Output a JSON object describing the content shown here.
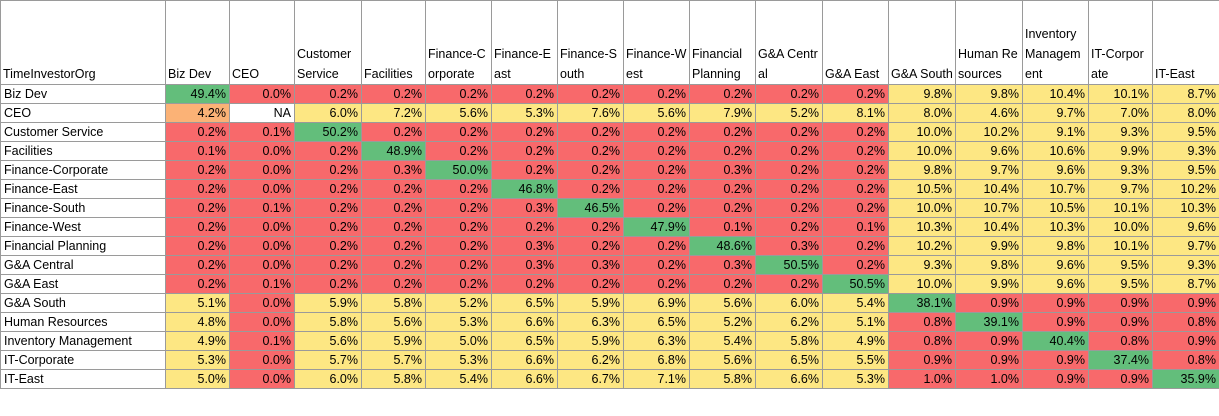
{
  "corner_label": "TimeInvestorOrg",
  "columns": [
    "Biz Dev",
    "CEO",
    "Customer Service",
    "Facilities",
    "Finance-Corporate",
    "Finance-East",
    "Finance-South",
    "Finance-West",
    "Financial Planning",
    "G&A Central",
    "G&A East",
    "G&A South",
    "Human Resources",
    "Inventory Management",
    "IT-Corporate",
    "IT-East"
  ],
  "rows": [
    {
      "label": "Biz Dev",
      "values": [
        "49.4%",
        "0.0%",
        "0.2%",
        "0.2%",
        "0.2%",
        "0.2%",
        "0.2%",
        "0.2%",
        "0.2%",
        "0.2%",
        "0.2%",
        "9.8%",
        "9.8%",
        "10.4%",
        "10.1%",
        "8.7%"
      ]
    },
    {
      "label": "CEO",
      "values": [
        "4.2%",
        "NA",
        "6.0%",
        "7.2%",
        "5.6%",
        "5.3%",
        "7.6%",
        "5.6%",
        "7.9%",
        "5.2%",
        "8.1%",
        "8.0%",
        "4.6%",
        "9.7%",
        "7.0%",
        "8.0%"
      ]
    },
    {
      "label": "Customer Service",
      "values": [
        "0.2%",
        "0.1%",
        "50.2%",
        "0.2%",
        "0.2%",
        "0.2%",
        "0.2%",
        "0.2%",
        "0.2%",
        "0.2%",
        "0.2%",
        "10.0%",
        "10.2%",
        "9.1%",
        "9.3%",
        "9.5%"
      ]
    },
    {
      "label": "Facilities",
      "values": [
        "0.1%",
        "0.0%",
        "0.2%",
        "48.9%",
        "0.2%",
        "0.2%",
        "0.2%",
        "0.2%",
        "0.2%",
        "0.2%",
        "0.2%",
        "10.0%",
        "9.6%",
        "10.6%",
        "9.9%",
        "9.3%"
      ]
    },
    {
      "label": "Finance-Corporate",
      "values": [
        "0.2%",
        "0.0%",
        "0.2%",
        "0.3%",
        "50.0%",
        "0.2%",
        "0.2%",
        "0.2%",
        "0.3%",
        "0.2%",
        "0.2%",
        "9.8%",
        "9.7%",
        "9.6%",
        "9.3%",
        "9.5%"
      ]
    },
    {
      "label": "Finance-East",
      "values": [
        "0.2%",
        "0.0%",
        "0.2%",
        "0.2%",
        "0.2%",
        "46.8%",
        "0.2%",
        "0.2%",
        "0.2%",
        "0.2%",
        "0.2%",
        "10.5%",
        "10.4%",
        "10.7%",
        "9.7%",
        "10.2%"
      ]
    },
    {
      "label": "Finance-South",
      "values": [
        "0.2%",
        "0.1%",
        "0.2%",
        "0.2%",
        "0.2%",
        "0.3%",
        "46.5%",
        "0.2%",
        "0.2%",
        "0.2%",
        "0.2%",
        "10.0%",
        "10.7%",
        "10.5%",
        "10.1%",
        "10.3%"
      ]
    },
    {
      "label": "Finance-West",
      "values": [
        "0.2%",
        "0.0%",
        "0.2%",
        "0.2%",
        "0.2%",
        "0.2%",
        "0.2%",
        "47.9%",
        "0.1%",
        "0.2%",
        "0.1%",
        "10.3%",
        "10.4%",
        "10.3%",
        "10.0%",
        "9.6%"
      ]
    },
    {
      "label": "Financial Planning",
      "values": [
        "0.2%",
        "0.0%",
        "0.2%",
        "0.2%",
        "0.2%",
        "0.3%",
        "0.2%",
        "0.2%",
        "48.6%",
        "0.3%",
        "0.2%",
        "10.2%",
        "9.9%",
        "9.8%",
        "10.1%",
        "9.7%"
      ]
    },
    {
      "label": "G&A Central",
      "values": [
        "0.2%",
        "0.0%",
        "0.2%",
        "0.2%",
        "0.2%",
        "0.3%",
        "0.3%",
        "0.2%",
        "0.3%",
        "50.5%",
        "0.2%",
        "9.3%",
        "9.8%",
        "9.6%",
        "9.5%",
        "9.3%"
      ]
    },
    {
      "label": "G&A East",
      "values": [
        "0.2%",
        "0.1%",
        "0.2%",
        "0.2%",
        "0.2%",
        "0.2%",
        "0.2%",
        "0.2%",
        "0.2%",
        "0.2%",
        "50.5%",
        "10.0%",
        "9.9%",
        "9.6%",
        "9.5%",
        "8.7%"
      ]
    },
    {
      "label": "G&A South",
      "values": [
        "5.1%",
        "0.0%",
        "5.9%",
        "5.8%",
        "5.2%",
        "6.5%",
        "5.9%",
        "6.9%",
        "5.6%",
        "6.0%",
        "5.4%",
        "38.1%",
        "0.9%",
        "0.9%",
        "0.9%",
        "0.9%"
      ]
    },
    {
      "label": "Human Resources",
      "values": [
        "4.8%",
        "0.0%",
        "5.8%",
        "5.6%",
        "5.3%",
        "6.6%",
        "6.3%",
        "6.5%",
        "5.2%",
        "6.2%",
        "5.1%",
        "0.8%",
        "39.1%",
        "0.9%",
        "0.9%",
        "0.8%"
      ]
    },
    {
      "label": "Inventory Management",
      "values": [
        "4.9%",
        "0.1%",
        "5.6%",
        "5.9%",
        "5.0%",
        "6.5%",
        "5.9%",
        "6.3%",
        "5.4%",
        "5.8%",
        "4.9%",
        "0.8%",
        "0.9%",
        "40.4%",
        "0.8%",
        "0.9%"
      ]
    },
    {
      "label": "IT-Corporate",
      "values": [
        "5.3%",
        "0.0%",
        "5.7%",
        "5.7%",
        "5.3%",
        "6.6%",
        "6.2%",
        "6.8%",
        "5.6%",
        "6.5%",
        "5.5%",
        "0.9%",
        "0.9%",
        "0.9%",
        "37.4%",
        "0.8%"
      ]
    },
    {
      "label": "IT-East",
      "values": [
        "5.0%",
        "0.0%",
        "6.0%",
        "5.8%",
        "5.4%",
        "6.6%",
        "6.7%",
        "7.1%",
        "5.8%",
        "6.6%",
        "5.3%",
        "1.0%",
        "1.0%",
        "0.9%",
        "0.9%",
        "35.9%"
      ]
    }
  ],
  "colors": {
    "red": "#f8696b",
    "yellow": "#fde783",
    "green": "#63be7b",
    "orange": "#fbb276",
    "white": "#ffffff",
    "grid": "#9a9a9a"
  }
}
